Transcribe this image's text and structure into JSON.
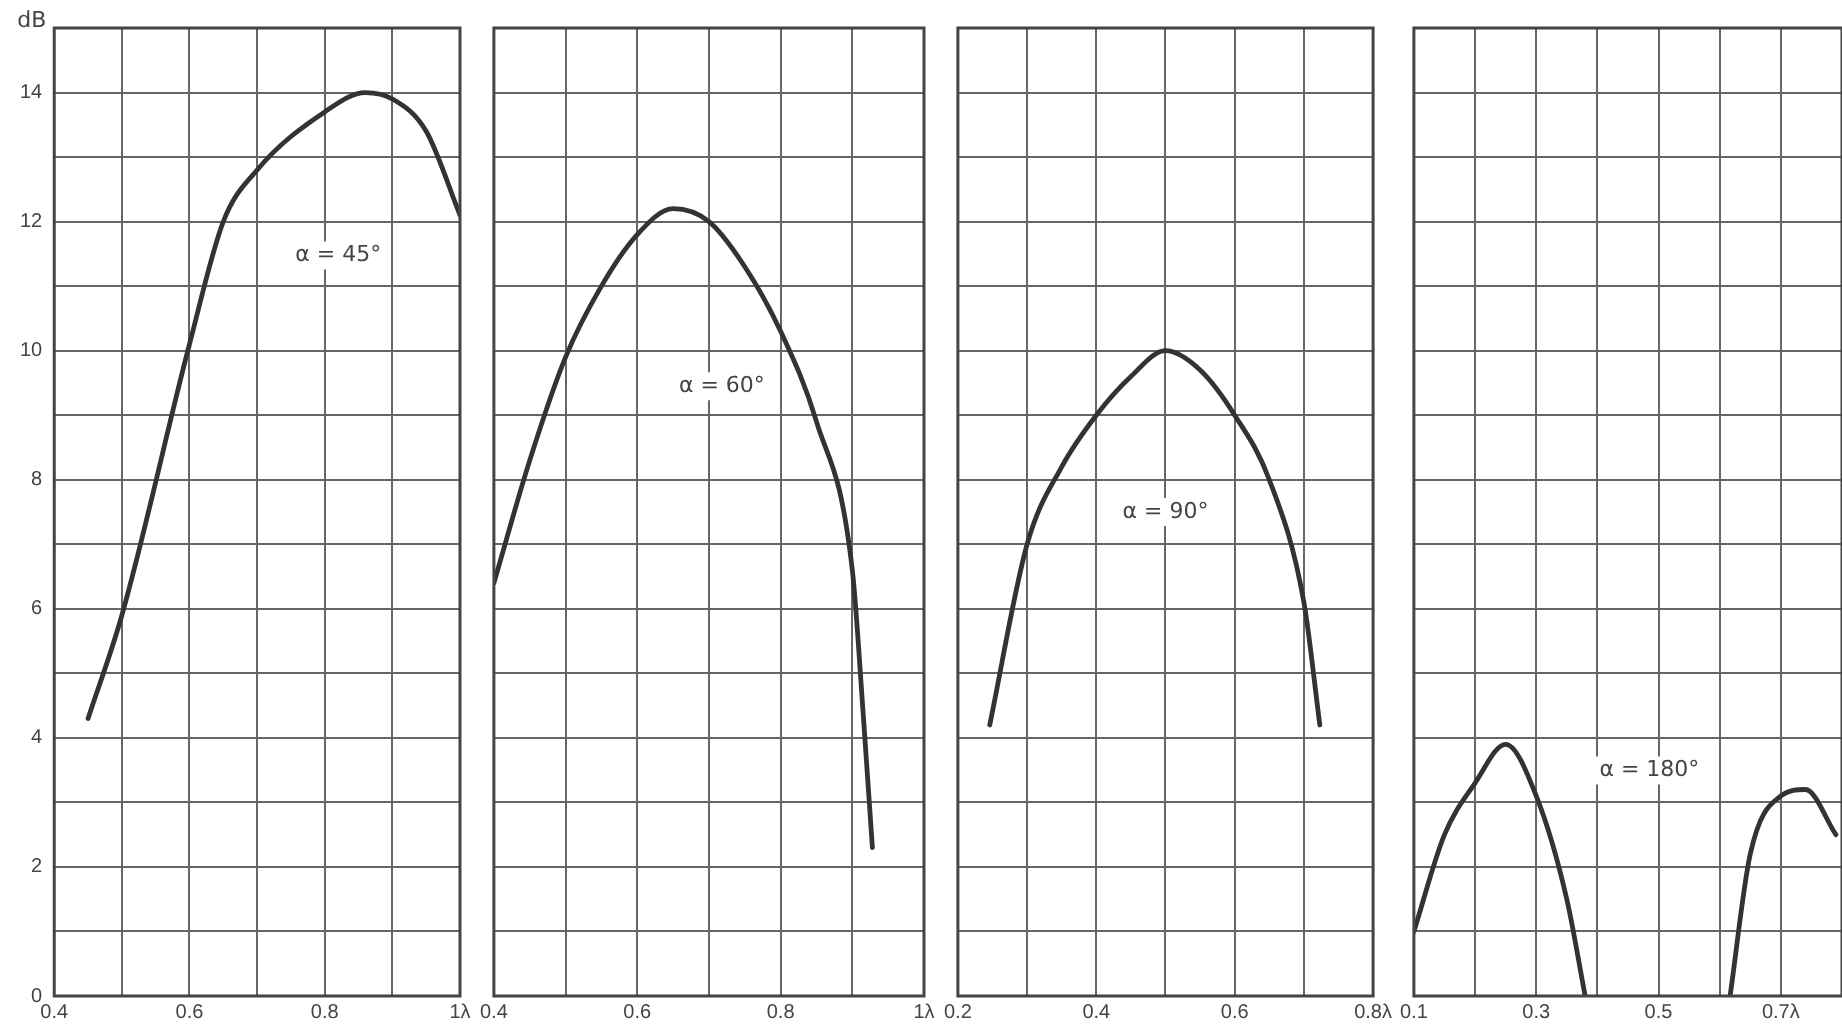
{
  "chart_data": [
    {
      "type": "line",
      "ylabel": "dB",
      "xlim": [
        0.4,
        1.0
      ],
      "ylim": [
        0,
        15
      ],
      "xticks": [
        0.4,
        {
          "value": 0.5,
          "label": null
        },
        0.6,
        {
          "value": 0.7,
          "label": null
        },
        0.8,
        {
          "value": 0.9,
          "label": null
        },
        {
          "value": 1.0,
          "label": "1λ"
        }
      ],
      "yticks": [
        0,
        {
          "value": 1,
          "label": null
        },
        2,
        {
          "value": 3,
          "label": null
        },
        4,
        {
          "value": 5,
          "label": null
        },
        6,
        {
          "value": 7,
          "label": null
        },
        8,
        {
          "value": 9,
          "label": null
        },
        10,
        {
          "value": 11,
          "label": null
        },
        12,
        {
          "value": 13,
          "label": null
        },
        14,
        {
          "value": 15,
          "label": null
        }
      ],
      "grid": true,
      "legend": false,
      "marker": "none",
      "line_style": "solid",
      "series": [
        {
          "color": "#333333",
          "x": [
            0.45,
            0.5,
            0.6,
            0.65,
            0.7,
            0.8,
            0.86,
            0.9,
            0.95,
            1.0
          ],
          "values": [
            4.3,
            5.9,
            10.1,
            12.0,
            12.8,
            13.7,
            14.0,
            13.9,
            13.4,
            12.1
          ]
        }
      ],
      "annotations": [
        "α = 45°"
      ]
    },
    {
      "type": "line",
      "xlim": [
        0.4,
        1.0
      ],
      "ylim": [
        0,
        15
      ],
      "tick_labels": "x",
      "xticks": [
        0.4,
        {
          "value": 0.5,
          "label": null
        },
        0.6,
        {
          "value": 0.7,
          "label": null
        },
        0.8,
        {
          "value": 0.9,
          "label": null
        },
        {
          "value": 1.0,
          "label": "1λ"
        }
      ],
      "yticks": [
        0,
        {
          "value": 1,
          "label": null
        },
        2,
        {
          "value": 3,
          "label": null
        },
        4,
        {
          "value": 5,
          "label": null
        },
        6,
        {
          "value": 7,
          "label": null
        },
        8,
        {
          "value": 9,
          "label": null
        },
        10,
        {
          "value": 11,
          "label": null
        },
        12,
        {
          "value": 13,
          "label": null
        },
        14,
        {
          "value": 15,
          "label": null
        }
      ],
      "grid": true,
      "legend": false,
      "marker": "none",
      "line_style": "solid",
      "series": [
        {
          "color": "#333333",
          "x": [
            0.4,
            0.45,
            0.5,
            0.55,
            0.6,
            0.65,
            0.7,
            0.75,
            0.8,
            0.85,
            0.9,
            0.915,
            0.928
          ],
          "values": [
            6.4,
            8.3,
            9.9,
            11.0,
            11.8,
            12.2,
            12.0,
            11.3,
            10.3,
            8.9,
            6.6,
            4.4,
            2.3
          ]
        }
      ],
      "annotations": [
        "α = 60°"
      ]
    },
    {
      "type": "line",
      "xlim": [
        0.2,
        0.8
      ],
      "ylim": [
        0,
        15
      ],
      "tick_labels": "x",
      "xticks": [
        0.2,
        {
          "value": 0.3,
          "label": null
        },
        0.4,
        {
          "value": 0.5,
          "label": null
        },
        0.6,
        {
          "value": 0.7,
          "label": null
        },
        {
          "value": 0.8,
          "label": "0.8λ"
        }
      ],
      "yticks": [
        0,
        {
          "value": 1,
          "label": null
        },
        2,
        {
          "value": 3,
          "label": null
        },
        4,
        {
          "value": 5,
          "label": null
        },
        6,
        {
          "value": 7,
          "label": null
        },
        8,
        {
          "value": 9,
          "label": null
        },
        10,
        {
          "value": 11,
          "label": null
        },
        12,
        {
          "value": 13,
          "label": null
        },
        14,
        {
          "value": 15,
          "label": null
        }
      ],
      "grid": true,
      "legend": false,
      "marker": "none",
      "line_style": "solid",
      "series": [
        {
          "color": "#333333",
          "x": [
            0.246,
            0.3,
            0.35,
            0.4,
            0.45,
            0.5,
            0.55,
            0.6,
            0.65,
            0.7,
            0.723
          ],
          "values": [
            4.2,
            7.0,
            8.2,
            9.0,
            9.6,
            10.0,
            9.7,
            9.0,
            8.0,
            6.1,
            4.2
          ]
        }
      ],
      "annotations": [
        "α = 90°"
      ]
    },
    {
      "type": "line",
      "xlim": [
        0.1,
        0.8
      ],
      "ylim": [
        0,
        15
      ],
      "tick_labels": "x",
      "xticks": [
        0.1,
        {
          "value": 0.2,
          "label": null
        },
        0.3,
        {
          "value": 0.4,
          "label": null
        },
        0.5,
        {
          "value": 0.6,
          "label": null
        },
        {
          "value": 0.7,
          "label": "0.7λ"
        }
      ],
      "yticks": [
        0,
        {
          "value": 1,
          "label": null
        },
        2,
        {
          "value": 3,
          "label": null
        },
        4,
        {
          "value": 5,
          "label": null
        },
        6,
        {
          "value": 7,
          "label": null
        },
        8,
        {
          "value": 9,
          "label": null
        },
        10,
        {
          "value": 11,
          "label": null
        },
        12,
        {
          "value": 13,
          "label": null
        },
        14,
        {
          "value": 15,
          "label": null
        }
      ],
      "grid": true,
      "legend": false,
      "marker": "none",
      "line_style": "solid",
      "series": [
        {
          "color": "#333333",
          "x": [
            0.1,
            0.15,
            0.2,
            0.25,
            0.3,
            0.35,
            0.38
          ],
          "values": [
            1.0,
            2.5,
            3.3,
            3.9,
            3.1,
            1.5,
            0
          ]
        },
        {
          "color": "#333333",
          "x": [
            0.617,
            0.65,
            0.7,
            0.74,
            0.79
          ],
          "values": [
            0,
            2.2,
            3.1,
            3.2,
            2.5
          ]
        }
      ],
      "annotations": [
        "α = 180°"
      ]
    }
  ]
}
